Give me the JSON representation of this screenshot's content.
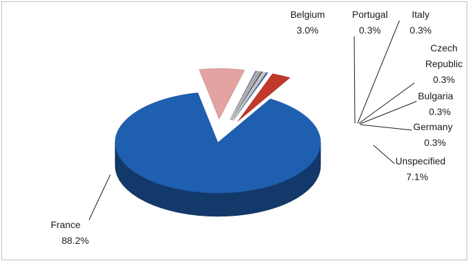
{
  "chart_data": {
    "type": "pie",
    "title": "",
    "style": "3d-exploded",
    "slices": [
      {
        "label": "France",
        "value": 88.2,
        "display": "88.2%",
        "color": "#1f5fb0"
      },
      {
        "label": "Unspecified",
        "value": 7.1,
        "display": "7.1%",
        "color": "#e3a3a0"
      },
      {
        "label": "Germany",
        "value": 0.3,
        "display": "0.3%",
        "color": "#8a8fa8"
      },
      {
        "label": "Bulgaria",
        "value": 0.3,
        "display": "0.3%",
        "color": "#a0a0a0"
      },
      {
        "label": "Czech Republic",
        "label_lines": [
          "Czech",
          "Republic"
        ],
        "value": 0.3,
        "display": "0.3%",
        "color": "#6a6a6a"
      },
      {
        "label": "Italy",
        "value": 0.3,
        "display": "0.3%",
        "color": "#c8c8c8"
      },
      {
        "label": "Portugal",
        "value": 0.3,
        "display": "0.3%",
        "color": "#4a6fa5"
      },
      {
        "label": "Belgium",
        "value": 3.0,
        "display": "3.0%",
        "color": "#c0392b"
      }
    ]
  }
}
